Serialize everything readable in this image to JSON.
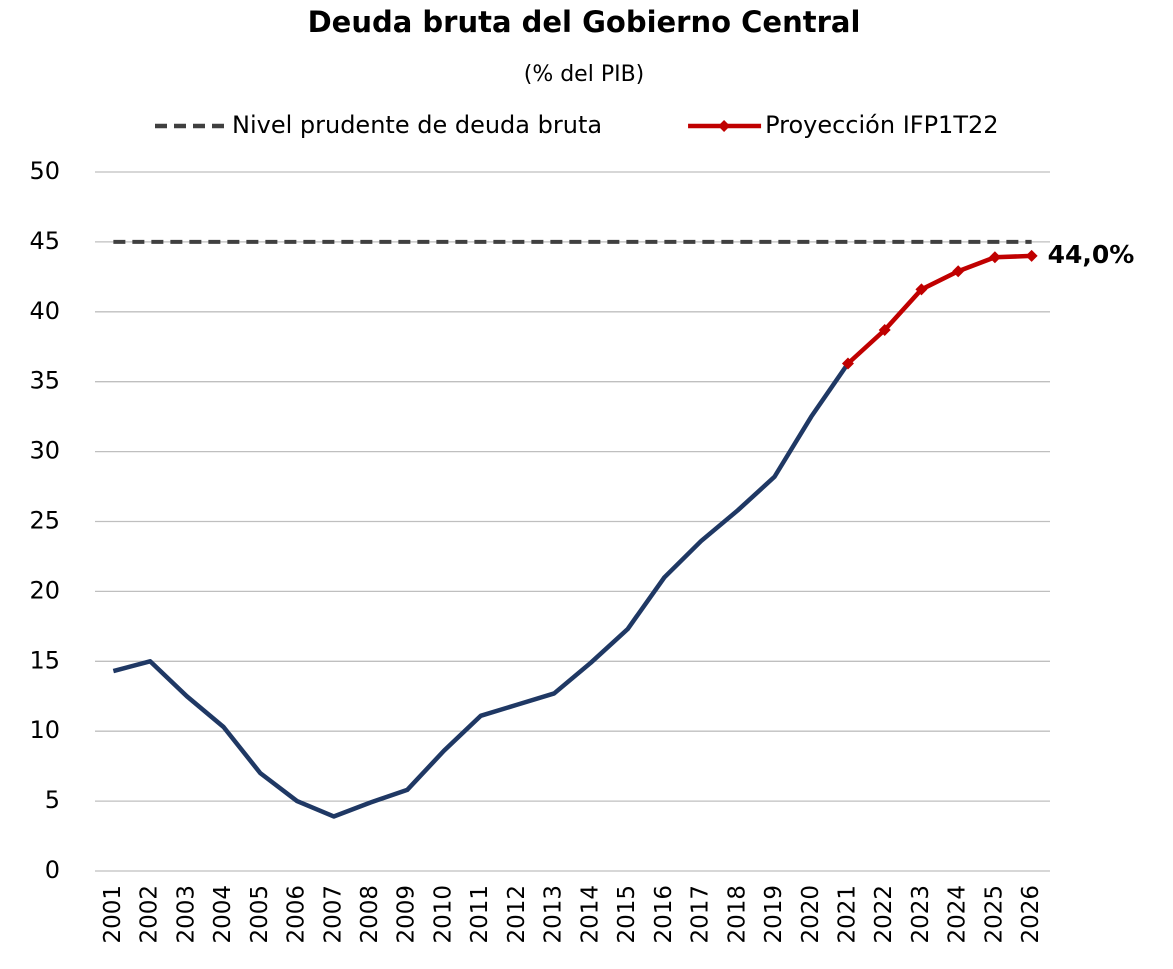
{
  "chart_data": {
    "type": "line",
    "title": "Deuda bruta del Gobierno Central",
    "subtitle": "(% del PIB)",
    "categories": [
      "2001",
      "2002",
      "2003",
      "2004",
      "2005",
      "2006",
      "2007",
      "2008",
      "2009",
      "2010",
      "2011",
      "2012",
      "2013",
      "2014",
      "2015",
      "2016",
      "2017",
      "2018",
      "2019",
      "2020",
      "2021",
      "2022",
      "2023",
      "2024",
      "2025",
      "2026"
    ],
    "series": [
      {
        "name": "Nivel prudente de deuda bruta",
        "color": "#404040",
        "dashed": true,
        "values": [
          45,
          45,
          45,
          45,
          45,
          45,
          45,
          45,
          45,
          45,
          45,
          45,
          45,
          45,
          45,
          45,
          45,
          45,
          45,
          45,
          45,
          45,
          45,
          45,
          45,
          45
        ]
      },
      {
        "color": "#1f3864",
        "values": [
          14.3,
          15.0,
          12.5,
          10.3,
          7.0,
          5.0,
          3.9,
          4.9,
          5.8,
          8.6,
          11.1,
          11.9,
          12.7,
          14.9,
          17.3,
          21.0,
          23.6,
          25.8,
          28.2,
          32.5,
          36.3,
          null,
          null,
          null,
          null,
          null
        ]
      },
      {
        "name": "Proyección IFP1T22",
        "color": "#c00000",
        "markers": true,
        "values": [
          null,
          null,
          null,
          null,
          null,
          null,
          null,
          null,
          null,
          null,
          null,
          null,
          null,
          null,
          null,
          null,
          null,
          null,
          null,
          null,
          36.3,
          38.7,
          41.6,
          42.9,
          43.9,
          44.0
        ],
        "value_labels": [
          null,
          null,
          null,
          null,
          null,
          null,
          null,
          null,
          null,
          null,
          null,
          null,
          null,
          null,
          null,
          null,
          null,
          null,
          null,
          null,
          null,
          null,
          null,
          null,
          null,
          "44,0%"
        ]
      }
    ],
    "ylim": [
      0,
      50
    ],
    "yticks": [
      0,
      5,
      10,
      15,
      20,
      25,
      30,
      35,
      40,
      45,
      50
    ],
    "grid": true,
    "legend": "top"
  }
}
